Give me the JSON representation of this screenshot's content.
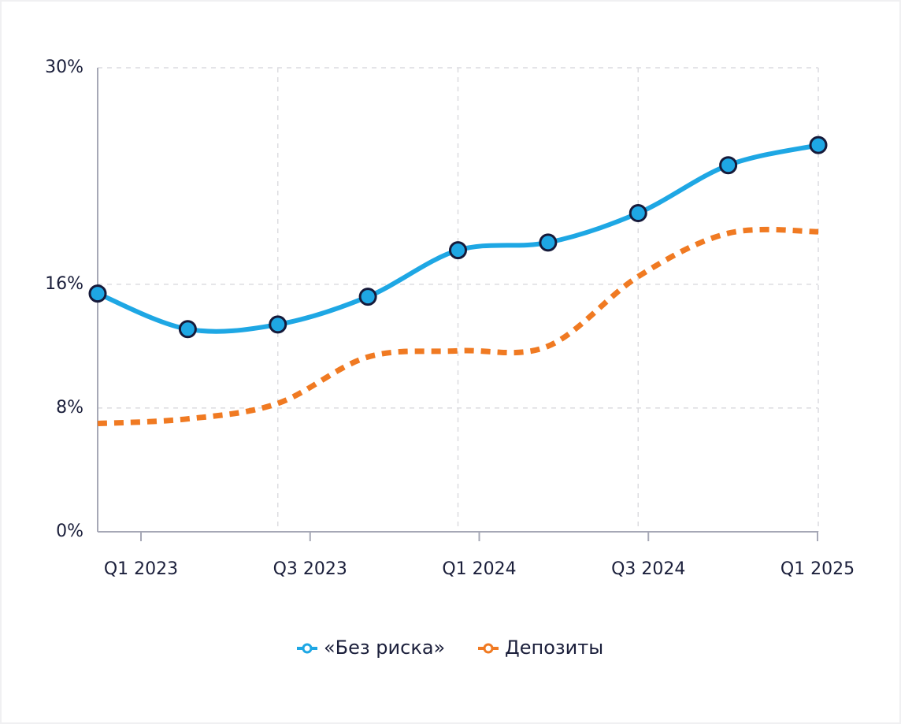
{
  "chart_data": {
    "type": "line",
    "categories": [
      "Q1 2023",
      null,
      "Q3 2023",
      null,
      "Q1 2024",
      null,
      "Q3 2024",
      null,
      "Q1 2025"
    ],
    "series": [
      {
        "name": "«Без риска»",
        "color": "#1ea7e4",
        "values": [
          15.4,
          13.1,
          13.4,
          15.2,
          18.2,
          18.7,
          20.6,
          23.7,
          25.0
        ]
      },
      {
        "name": "Депозиты",
        "color": "#f07a22",
        "values": [
          7.0,
          7.3,
          8.3,
          11.3,
          11.7,
          12.0,
          16.5,
          19.3,
          19.4
        ]
      }
    ],
    "ylim": [
      0,
      30
    ],
    "yticks": [
      {
        "value": 0,
        "label": "0%"
      },
      {
        "value": 8,
        "label": "8%"
      },
      {
        "value": 16,
        "label": "16%"
      },
      {
        "value": 30,
        "label": "30%"
      }
    ],
    "grid": true,
    "legend": "bottom"
  }
}
